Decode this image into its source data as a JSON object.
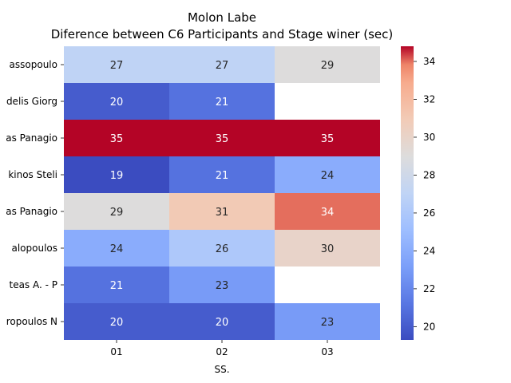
{
  "chart_data": {
    "type": "heatmap",
    "title_line1": "Molon Labe",
    "title_line2": "Diference between C6 Participants and Stage winer (sec)",
    "xlabel": "SS.",
    "ylabel": "",
    "x_categories": [
      "01",
      "02",
      "03"
    ],
    "y_categories": [
      "assopoulo",
      "delis Giorg",
      "as Panagio",
      "kinos Steli",
      "as Panagio",
      "alopoulos ",
      "teas A.  - P",
      "ropoulos N"
    ],
    "values": [
      [
        27,
        27,
        29
      ],
      [
        20,
        21,
        null
      ],
      [
        35,
        35,
        35
      ],
      [
        19,
        21,
        24
      ],
      [
        29,
        31,
        34
      ],
      [
        24,
        26,
        30
      ],
      [
        21,
        23,
        null
      ],
      [
        20,
        20,
        23
      ]
    ],
    "colorbar": {
      "min": 19.3,
      "max": 34.8,
      "ticks": [
        "20",
        "22",
        "24",
        "26",
        "28",
        "30",
        "32",
        "34"
      ],
      "colormap": "coolwarm"
    }
  }
}
